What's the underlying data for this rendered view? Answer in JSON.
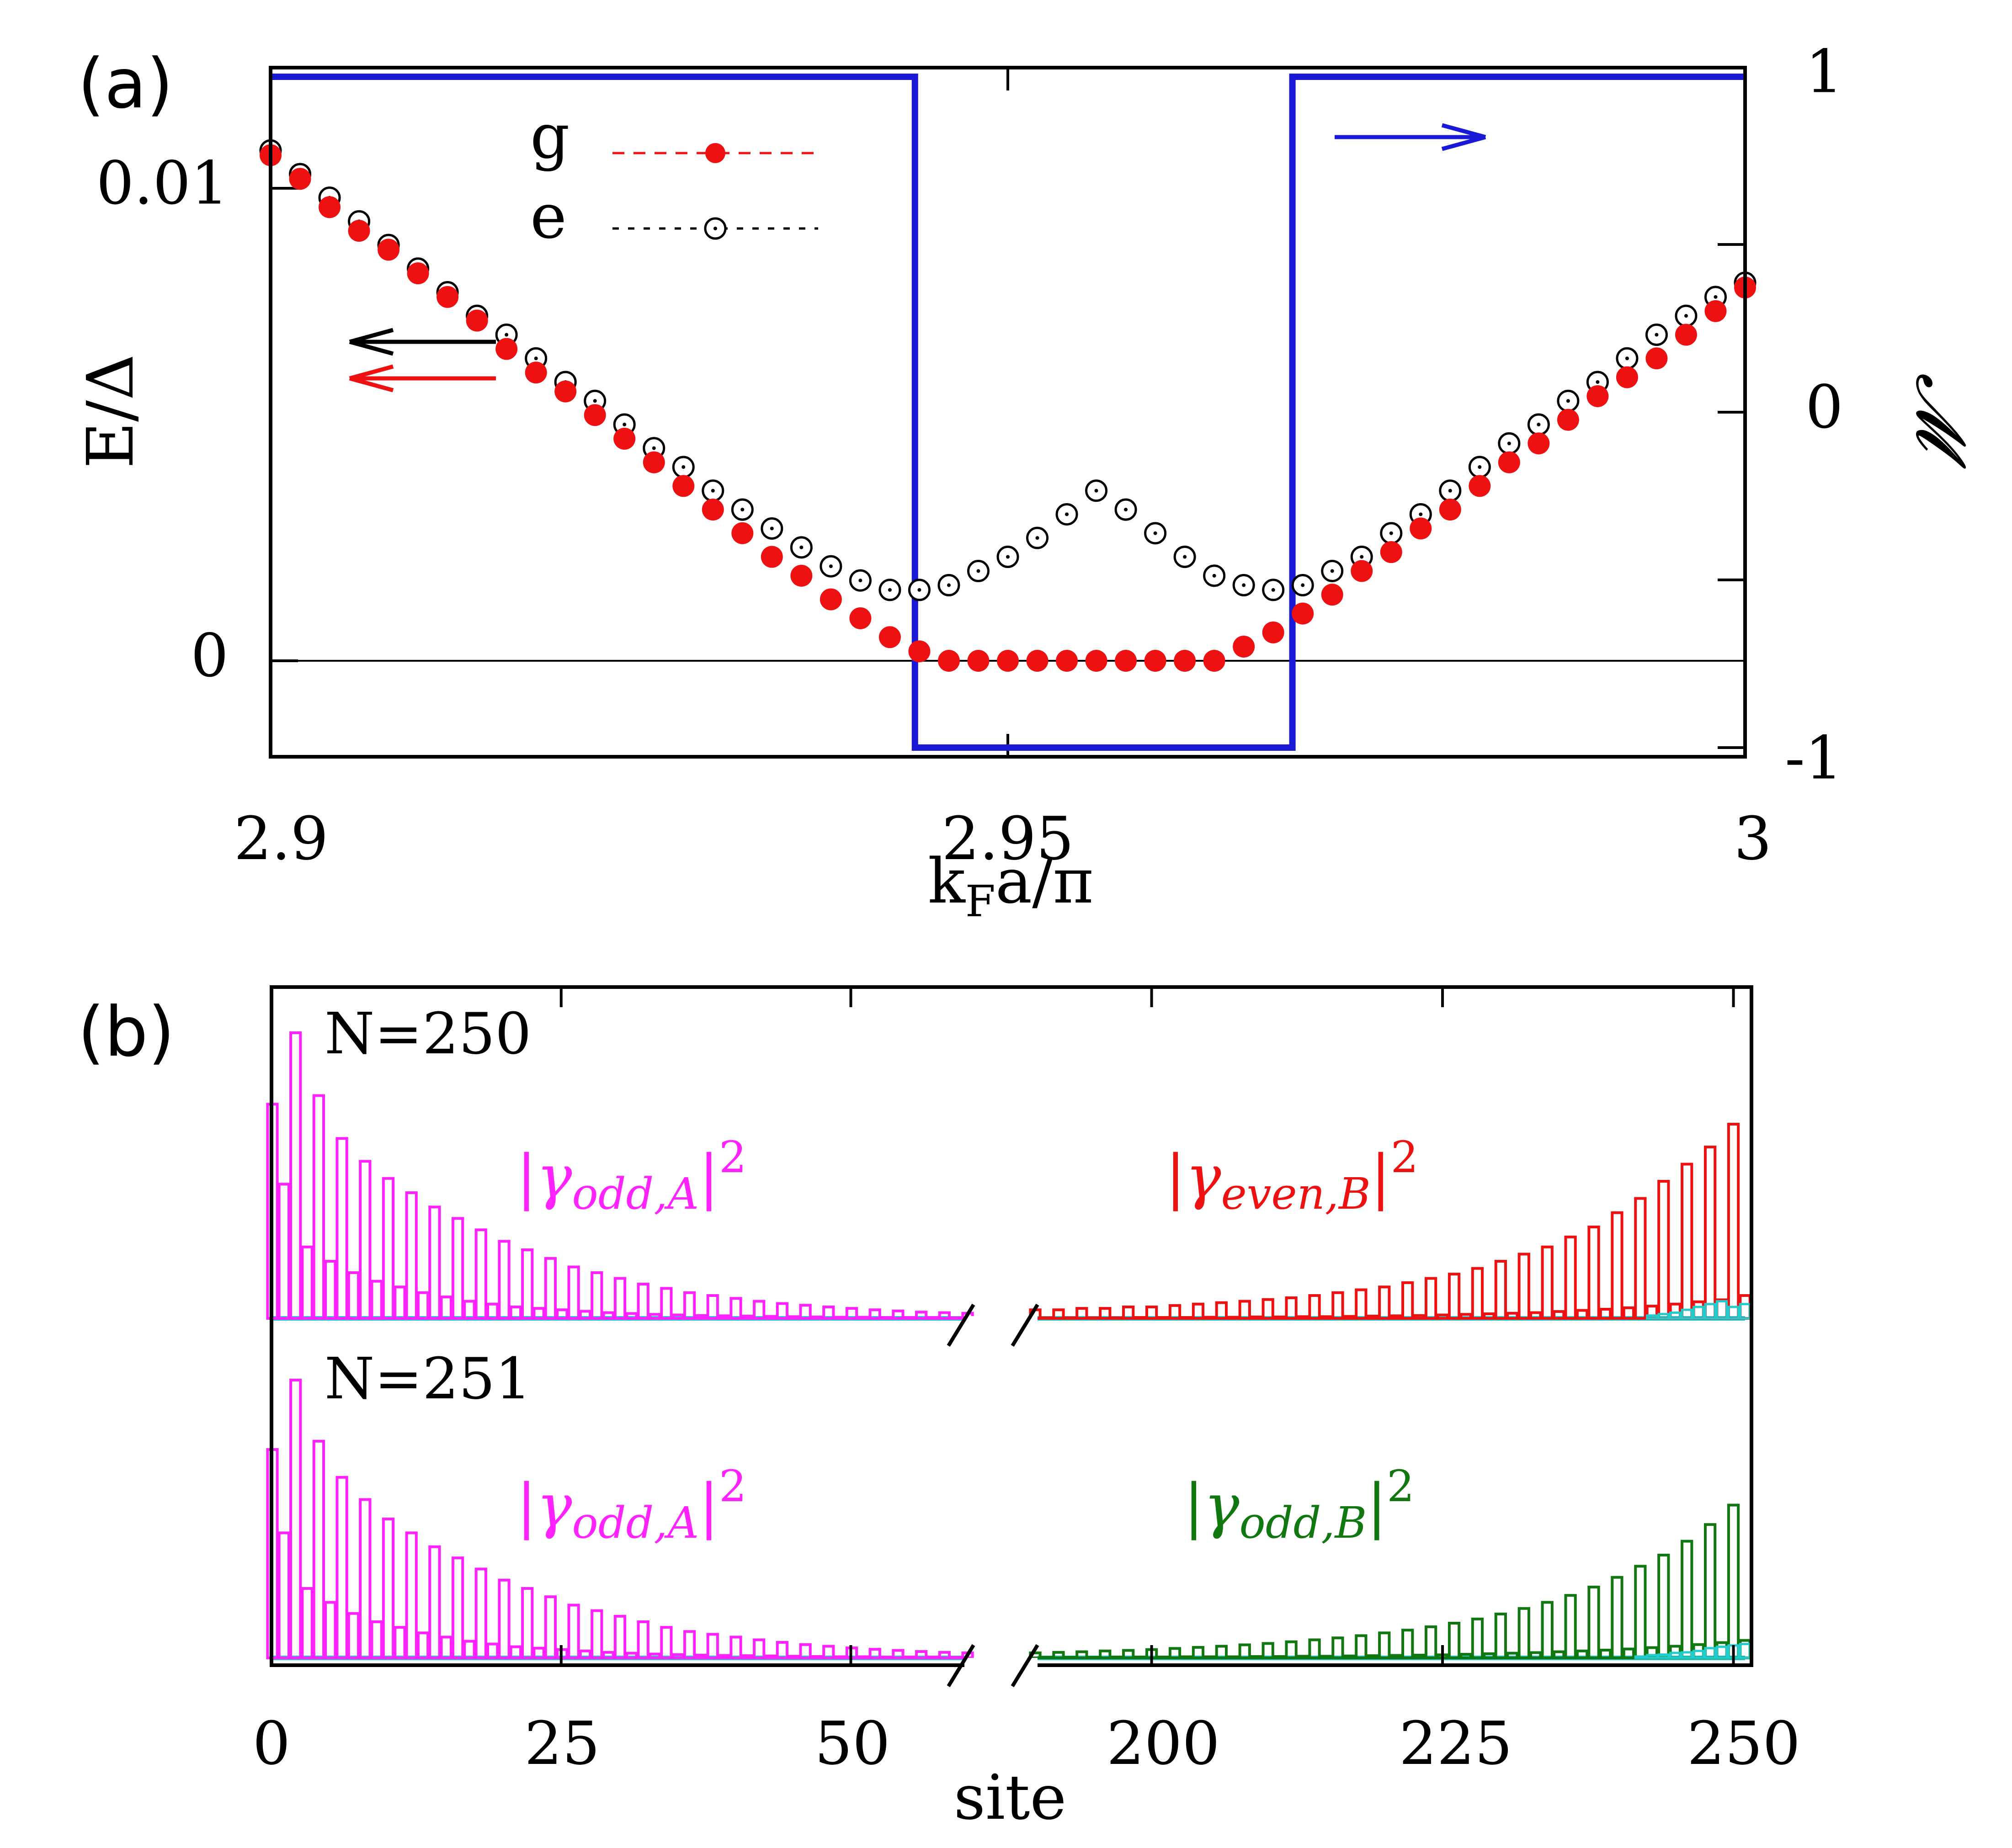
{
  "chart_data": [
    {
      "panel_label": "(a)",
      "type": "scatter+step",
      "xlabel": "k_F a/π",
      "xlabel_main": "k",
      "xlabel_sub": "F",
      "xlabel_rest": "a/π",
      "ylabel_left": "E/Δ",
      "ylabel_right": "𝓜",
      "xlim": [
        2.9,
        3.0
      ],
      "ylim_left": [
        -0.002,
        0.012
      ],
      "ylim_right": [
        -1,
        1
      ],
      "x_ticks": [
        "2.9",
        "2.95",
        "3"
      ],
      "y_left_ticks": [
        "0.01",
        "0"
      ],
      "y_right_ticks": [
        "1",
        "0",
        "-1"
      ],
      "legend": {
        "g": "g",
        "e": "e"
      },
      "colors": {
        "g": "#ee1111",
        "e": "#000000",
        "M": "#1a1ad6"
      },
      "series": [
        {
          "name": "g",
          "x": [
            2.9,
            2.902,
            2.904,
            2.906,
            2.908,
            2.91,
            2.912,
            2.914,
            2.916,
            2.918,
            2.92,
            2.922,
            2.924,
            2.926,
            2.928,
            2.93,
            2.932,
            2.934,
            2.936,
            2.938,
            2.94,
            2.942,
            2.944,
            2.946,
            2.948,
            2.95,
            2.952,
            2.954,
            2.956,
            2.958,
            2.96,
            2.962,
            2.964,
            2.966,
            2.968,
            2.97,
            2.972,
            2.974,
            2.976,
            2.978,
            2.98,
            2.982,
            2.984,
            2.986,
            2.988,
            2.99,
            2.992,
            2.994,
            2.996,
            2.998,
            3.0
          ],
          "y": [
            0.0107,
            0.0102,
            0.0096,
            0.0091,
            0.0087,
            0.0082,
            0.0077,
            0.0072,
            0.0066,
            0.0061,
            0.0057,
            0.0052,
            0.0047,
            0.0042,
            0.0037,
            0.0032,
            0.0027,
            0.0022,
            0.0018,
            0.0013,
            0.0009,
            0.0005,
            0.0002,
            0.0,
            0.0,
            0.0,
            0.0,
            0.0,
            0.0,
            0.0,
            0.0,
            0.0,
            0.0,
            0.0003,
            0.0006,
            0.001,
            0.0014,
            0.0019,
            0.0023,
            0.0028,
            0.0032,
            0.0037,
            0.0042,
            0.0046,
            0.0051,
            0.0056,
            0.006,
            0.0064,
            0.0069,
            0.0074,
            0.0079
          ]
        },
        {
          "name": "e",
          "x": [
            2.9,
            2.902,
            2.904,
            2.906,
            2.908,
            2.91,
            2.912,
            2.914,
            2.916,
            2.918,
            2.92,
            2.922,
            2.924,
            2.926,
            2.928,
            2.93,
            2.932,
            2.934,
            2.936,
            2.938,
            2.94,
            2.942,
            2.944,
            2.946,
            2.948,
            2.95,
            2.952,
            2.954,
            2.956,
            2.958,
            2.96,
            2.962,
            2.964,
            2.966,
            2.968,
            2.97,
            2.972,
            2.974,
            2.976,
            2.978,
            2.98,
            2.982,
            2.984,
            2.986,
            2.988,
            2.99,
            2.992,
            2.994,
            2.996,
            2.998,
            3.0
          ],
          "y": [
            0.0108,
            0.0103,
            0.0098,
            0.0093,
            0.0088,
            0.0083,
            0.0078,
            0.0073,
            0.0069,
            0.0064,
            0.0059,
            0.0055,
            0.005,
            0.0045,
            0.0041,
            0.0036,
            0.0032,
            0.0028,
            0.0024,
            0.002,
            0.0017,
            0.0015,
            0.0015,
            0.0016,
            0.0019,
            0.0022,
            0.0026,
            0.0031,
            0.0036,
            0.0032,
            0.0027,
            0.0022,
            0.0018,
            0.0016,
            0.0015,
            0.0016,
            0.0019,
            0.0022,
            0.0027,
            0.0031,
            0.0036,
            0.0041,
            0.0046,
            0.005,
            0.0055,
            0.0059,
            0.0064,
            0.0069,
            0.0073,
            0.0077,
            0.008
          ]
        },
        {
          "name": "M",
          "axis": "right",
          "type": "step",
          "x": [
            2.9,
            2.9437,
            2.9437,
            2.9693,
            2.9693,
            3.0
          ],
          "y": [
            1,
            1,
            -1,
            -1,
            1,
            1
          ]
        }
      ]
    },
    {
      "panel_label": "(b)",
      "type": "bar",
      "xlabel": "site",
      "x_ticks": [
        "0",
        "25",
        "50",
        "200",
        "225",
        "250"
      ],
      "x_segments": [
        [
          0,
          60
        ],
        [
          190,
          251
        ]
      ],
      "colors": {
        "magenta": "#ff22ff",
        "red": "#ee1111",
        "green": "#117711",
        "cyan": "#22cccc"
      },
      "subpanels": [
        {
          "label": "N=250",
          "left_label": {
            "base": "γ",
            "sub": "odd,A",
            "sup": "2"
          },
          "right_label": {
            "base": "γ",
            "sub": "even,B",
            "sup": "2"
          },
          "left_color": "magenta",
          "right_color": "red",
          "left_values": [
            0.75,
            0.47,
            1.0,
            0.25,
            0.78,
            0.2,
            0.63,
            0.16,
            0.55,
            0.13,
            0.49,
            0.11,
            0.44,
            0.09,
            0.39,
            0.075,
            0.35,
            0.06,
            0.31,
            0.05,
            0.27,
            0.04,
            0.24,
            0.035,
            0.21,
            0.03,
            0.18,
            0.025,
            0.16,
            0.02,
            0.14,
            0.017,
            0.12,
            0.014,
            0.105,
            0.012,
            0.09,
            0.01,
            0.08,
            0.009,
            0.07,
            0.008,
            0.06,
            0.007,
            0.052,
            0.006,
            0.046,
            0.005,
            0.04,
            0.004,
            0.035,
            0.004,
            0.03,
            0.003,
            0.026,
            0.003,
            0.022,
            0.003,
            0.02,
            0.002,
            0.018
          ],
          "right_values": [
            0.03,
            0.002,
            0.03,
            0.002,
            0.035,
            0.002,
            0.035,
            0.002,
            0.04,
            0.003,
            0.04,
            0.003,
            0.045,
            0.003,
            0.05,
            0.004,
            0.055,
            0.004,
            0.06,
            0.005,
            0.066,
            0.005,
            0.072,
            0.006,
            0.08,
            0.006,
            0.09,
            0.007,
            0.1,
            0.008,
            0.11,
            0.009,
            0.125,
            0.01,
            0.14,
            0.012,
            0.155,
            0.014,
            0.175,
            0.016,
            0.2,
            0.018,
            0.225,
            0.02,
            0.25,
            0.024,
            0.285,
            0.028,
            0.32,
            0.032,
            0.37,
            0.037,
            0.42,
            0.043,
            0.48,
            0.05,
            0.54,
            0.058,
            0.6,
            0.065,
            0.68,
            0.08,
            0.8,
            0.09,
            1.0,
            0.06,
            0.75
          ],
          "cyan_right_tail": [
            0.0,
            0.0,
            0.01,
            0.015,
            0.02,
            0.03,
            0.04,
            0.05,
            0.06,
            0.04,
            0.05
          ]
        },
        {
          "label": "N=251",
          "left_label": {
            "base": "γ",
            "sub": "odd,A",
            "sup": "2"
          },
          "right_label": {
            "base": "γ",
            "sub": "odd,B",
            "sup": "2"
          },
          "left_color": "magenta",
          "right_color": "green",
          "left_values": [
            0.75,
            0.45,
            1.0,
            0.25,
            0.78,
            0.2,
            0.65,
            0.16,
            0.57,
            0.13,
            0.5,
            0.11,
            0.45,
            0.09,
            0.4,
            0.075,
            0.36,
            0.06,
            0.32,
            0.05,
            0.28,
            0.04,
            0.25,
            0.035,
            0.22,
            0.03,
            0.19,
            0.025,
            0.17,
            0.02,
            0.15,
            0.017,
            0.13,
            0.014,
            0.11,
            0.012,
            0.095,
            0.01,
            0.085,
            0.009,
            0.075,
            0.008,
            0.065,
            0.007,
            0.056,
            0.006,
            0.048,
            0.005,
            0.042,
            0.004,
            0.036,
            0.004,
            0.031,
            0.003,
            0.027,
            0.003,
            0.023,
            0.003,
            0.02,
            0.002,
            0.018
          ],
          "right_values": [
            0.018,
            0.002,
            0.02,
            0.002,
            0.022,
            0.002,
            0.025,
            0.003,
            0.027,
            0.003,
            0.03,
            0.003,
            0.034,
            0.004,
            0.038,
            0.004,
            0.042,
            0.004,
            0.047,
            0.005,
            0.052,
            0.005,
            0.058,
            0.006,
            0.065,
            0.006,
            0.072,
            0.007,
            0.08,
            0.008,
            0.09,
            0.009,
            0.1,
            0.01,
            0.112,
            0.011,
            0.125,
            0.013,
            0.14,
            0.015,
            0.158,
            0.017,
            0.178,
            0.019,
            0.2,
            0.022,
            0.225,
            0.025,
            0.255,
            0.028,
            0.29,
            0.032,
            0.33,
            0.037,
            0.37,
            0.042,
            0.42,
            0.048,
            0.48,
            0.055,
            0.55,
            0.063,
            0.63,
            0.072,
            0.71,
            0.08,
            0.82,
            0.09,
            1.0,
            0.1,
            0.72
          ],
          "cyan_right_tail": [
            0.0,
            0.0,
            0.005,
            0.01,
            0.012,
            0.018,
            0.02,
            0.025,
            0.035,
            0.04,
            0.045,
            0.05
          ]
        }
      ]
    }
  ]
}
